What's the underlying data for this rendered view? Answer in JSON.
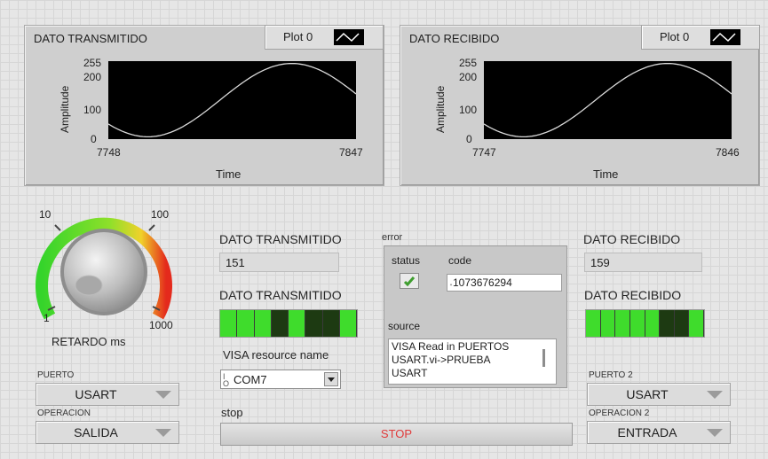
{
  "graph_tx": {
    "title": "DATO TRANSMITIDO",
    "legend": "Plot 0",
    "ylabel": "Amplitude",
    "xlabel": "Time",
    "y_ticks": [
      "255",
      "200",
      "100",
      "0"
    ],
    "x_start": "7748",
    "x_end": "7847"
  },
  "graph_rx": {
    "title": "DATO RECIBIDO",
    "legend": "Plot 0",
    "ylabel": "Amplitude",
    "xlabel": "Time",
    "y_ticks": [
      "255",
      "200",
      "100",
      "0"
    ],
    "x_start": "7747",
    "x_end": "7846"
  },
  "knob": {
    "label": "RETARDO ms",
    "scale": [
      "10",
      "100",
      "1",
      "1000"
    ]
  },
  "tx": {
    "label": "DATO TRANSMITIDO",
    "value": "151",
    "bool_label": "DATO TRANSMITIDO",
    "bits": [
      1,
      1,
      1,
      0,
      1,
      0,
      0,
      1
    ]
  },
  "rx": {
    "label": "DATO RECIBIDO",
    "value": "159",
    "bool_label": "DATO RECIBIDO",
    "bits": [
      1,
      1,
      1,
      1,
      1,
      0,
      0,
      1
    ]
  },
  "visa": {
    "label": "VISA resource name",
    "value": "COM7",
    "prefix_icon": "io-icon"
  },
  "error": {
    "label": "error",
    "status_label": "status",
    "code_label": "code",
    "code_value": "1073676294",
    "code_prefix": "˔",
    "source_label": "source",
    "source_text": "VISA Read in PUERTOS USART.vi->PRUEBA USART"
  },
  "stop": {
    "label": "stop",
    "button": "STOP"
  },
  "left_controls": {
    "puerto_label": "PUERTO",
    "puerto_value": "USART",
    "operacion_label": "OPERACION",
    "operacion_value": "SALIDA"
  },
  "right_controls": {
    "puerto_label": "PUERTO 2",
    "puerto_value": "USART",
    "operacion_label": "OPERACION 2",
    "operacion_value": "ENTRADA"
  },
  "colors": {
    "led_on": "#3fdc2c",
    "led_off": "#1d3a12",
    "stop_text": "#e03a3a",
    "status_ok": "#3f9e2f"
  }
}
